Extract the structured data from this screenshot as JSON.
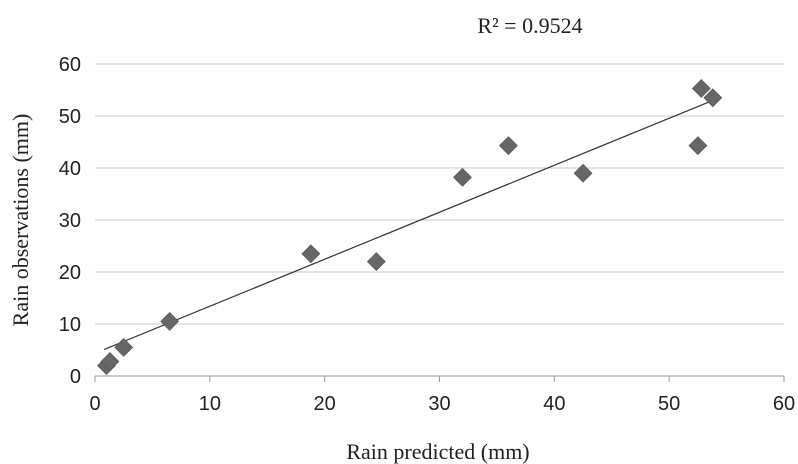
{
  "chart_data": {
    "type": "scatter",
    "xlabel": "Rain predicted (mm)",
    "ylabel": "Rain observations (mm)",
    "annotation": "R² = 0.9524",
    "xlim": [
      0,
      60
    ],
    "ylim": [
      0,
      60
    ],
    "xticks": [
      "0",
      "10",
      "20",
      "30",
      "40",
      "50",
      "60"
    ],
    "yticks": [
      "0",
      "10",
      "20",
      "30",
      "40",
      "50",
      "60"
    ],
    "grid": "horizontal",
    "marker": "diamond",
    "marker_color": "#666666",
    "line_color": "#333333",
    "gridline_color": "#c8c8c8",
    "series": [
      {
        "points": [
          [
            1.0,
            2.0
          ],
          [
            1.3,
            2.8
          ],
          [
            2.5,
            5.5
          ],
          [
            6.5,
            10.5
          ],
          [
            18.8,
            23.5
          ],
          [
            24.5,
            22.0
          ],
          [
            32.0,
            38.2
          ],
          [
            36.0,
            44.3
          ],
          [
            42.5,
            39.0
          ],
          [
            52.5,
            44.3
          ],
          [
            52.8,
            55.3
          ],
          [
            53.8,
            53.5
          ]
        ]
      }
    ],
    "trendline": {
      "x": [
        0.8,
        53.8
      ],
      "y": [
        5.1,
        53.0
      ]
    }
  }
}
